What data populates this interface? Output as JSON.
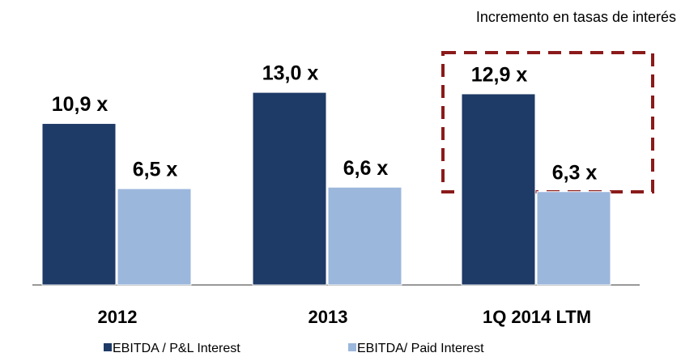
{
  "chart_data": {
    "type": "bar",
    "annotation": "Incremento en tasas de interés",
    "categories": [
      "2012",
      "2013",
      "1Q 2014 LTM"
    ],
    "series": [
      {
        "name": "EBITDA / P&L Interest",
        "color": "#1e3a66",
        "values": [
          10.9,
          13.0,
          12.9
        ],
        "value_labels": [
          "10,9 x",
          "13,0 x",
          "12,9 x"
        ]
      },
      {
        "name": "EBITDA/ Paid Interest",
        "color": "#9cb7dc",
        "values": [
          6.5,
          6.6,
          6.3
        ],
        "value_labels": [
          "6,5 x",
          "6,6 x",
          "6,3 x"
        ]
      }
    ]
  }
}
